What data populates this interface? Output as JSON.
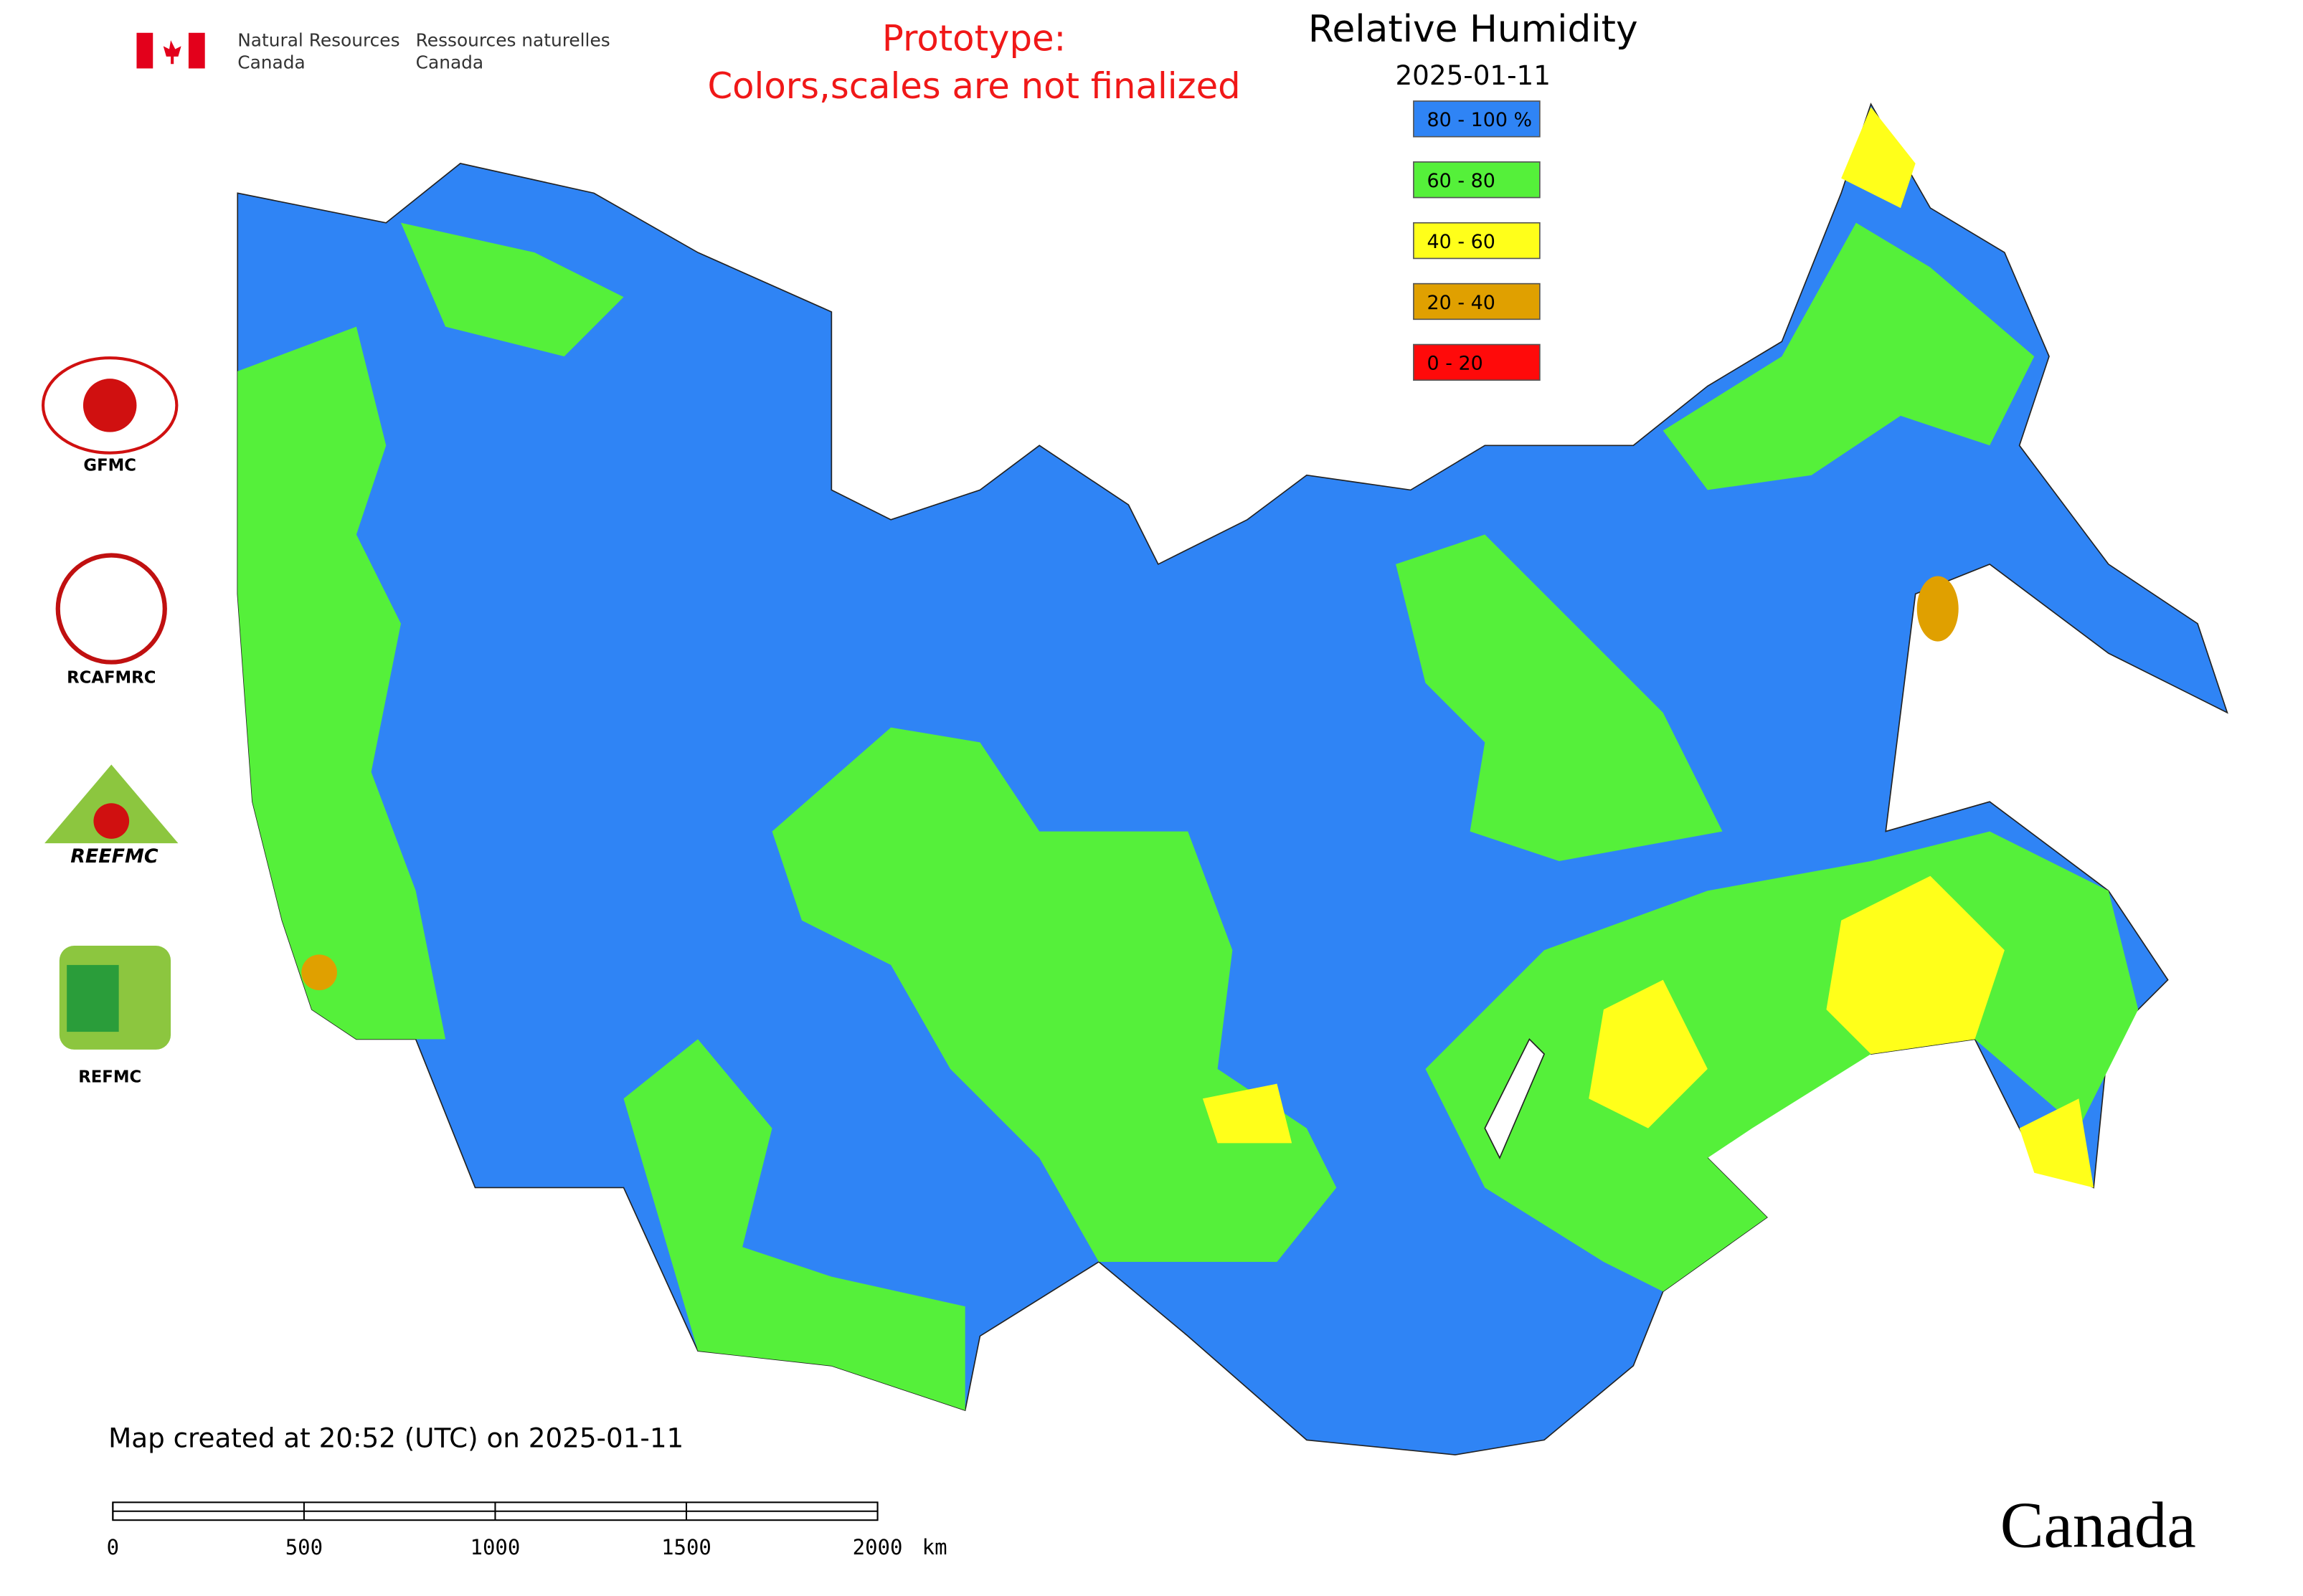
{
  "header": {
    "agency_en": [
      "Natural Resources",
      "Canada"
    ],
    "agency_fr": [
      "Ressources naturelles",
      "Canada"
    ]
  },
  "notice": [
    "Prototype:",
    "Colors,scales are not finalized"
  ],
  "title": "Relative Humidity",
  "date": "2025-01-11",
  "legend": [
    {
      "label": "80 - 100 %",
      "color": "#2f84f5"
    },
    {
      "label": "60 - 80",
      "color": "#55f03a"
    },
    {
      "label": "40 - 60",
      "color": "#ffff1a"
    },
    {
      "label": "20 - 40",
      "color": "#e0a000"
    },
    {
      "label": "0 - 20",
      "color": "#ff0a0a"
    }
  ],
  "logos": [
    "GFMC",
    "RCAFMRC",
    "REEFMC",
    "REFMC"
  ],
  "footer": {
    "created": "Map created at 20:52 (UTC) on 2025-01-11",
    "brand": "Canada"
  },
  "scale_bar": {
    "ticks": [
      0,
      500,
      1000,
      1500,
      2000
    ],
    "unit": "km"
  }
}
